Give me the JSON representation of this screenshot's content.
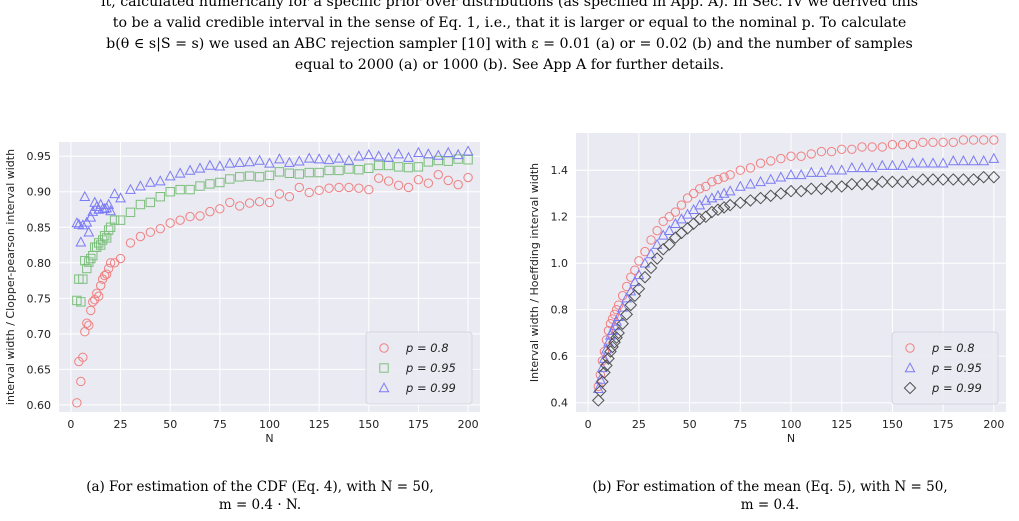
{
  "intro": {
    "line1": "it, calculated numerically for a specific prior over distributions (as specified in App. A). In Sec. IV we derived this",
    "line2": "to be a valid credible interval in the sense of Eq. 1, i.e., that it is larger or equal to the nominal p. To calculate",
    "line3": "b(θ ∈ s|S = s) we used an ABC rejection sampler [10] with ε = 0.01 (a) or = 0.02 (b) and the number of samples",
    "line4": "equal to 2000 (a) or 1000 (b). See App A for further details."
  },
  "captions": {
    "a_line1": "(a) For estimation of the CDF (Eq. 4), with N = 50,",
    "a_line2": "m = 0.4 · N.",
    "b_line1": "(b) For estimation of the mean (Eq. 5), with N = 50,",
    "b_line2": "m = 0.4."
  },
  "colors": {
    "plot_bg": "#eaeaf2",
    "grid": "#ffffff",
    "red": "#f08080",
    "green": "#7dbf7d",
    "blue": "#7b7bf5",
    "gray": "#505050"
  },
  "chart_data": [
    {
      "type": "scatter",
      "title": "",
      "xlabel": "N",
      "ylabel": "interval width / Clopper-pearson interval width",
      "xlim": [
        -6,
        206
      ],
      "ylim": [
        0.59,
        0.97
      ],
      "xticks": [
        0,
        25,
        50,
        75,
        100,
        125,
        150,
        175,
        200
      ],
      "yticks": [
        0.6,
        0.65,
        0.7,
        0.75,
        0.8,
        0.85,
        0.9,
        0.95
      ],
      "ytick_labels": [
        "0.60",
        "0.65",
        "0.70",
        "0.75",
        "0.80",
        "0.85",
        "0.90",
        "0.95"
      ],
      "grid": true,
      "legend_position": "lower-right",
      "series": [
        {
          "name": "p = 0.8",
          "marker": "circle",
          "color": "#f08080",
          "x": [
            3,
            4,
            5,
            6,
            7,
            8,
            9,
            10,
            11,
            12,
            13,
            14,
            15,
            16,
            17,
            18,
            19,
            20,
            22,
            25,
            30,
            35,
            40,
            45,
            50,
            55,
            60,
            65,
            70,
            75,
            80,
            85,
            90,
            95,
            100,
            105,
            110,
            115,
            120,
            125,
            130,
            135,
            140,
            145,
            150,
            155,
            160,
            165,
            170,
            175,
            180,
            185,
            190,
            195,
            200
          ],
          "y": [
            0.603,
            0.661,
            0.633,
            0.667,
            0.703,
            0.715,
            0.712,
            0.733,
            0.745,
            0.748,
            0.757,
            0.753,
            0.768,
            0.777,
            0.782,
            0.784,
            0.792,
            0.8,
            0.8,
            0.806,
            0.828,
            0.837,
            0.843,
            0.848,
            0.856,
            0.86,
            0.865,
            0.866,
            0.872,
            0.876,
            0.885,
            0.88,
            0.884,
            0.886,
            0.885,
            0.897,
            0.893,
            0.906,
            0.899,
            0.902,
            0.905,
            0.906,
            0.906,
            0.905,
            0.903,
            0.919,
            0.915,
            0.909,
            0.906,
            0.917,
            0.912,
            0.924,
            0.916,
            0.91,
            0.92
          ]
        },
        {
          "name": "p = 0.95",
          "marker": "square",
          "color": "#7dbf7d",
          "x": [
            3,
            4,
            5,
            6,
            7,
            8,
            9,
            10,
            11,
            12,
            13,
            14,
            15,
            16,
            17,
            18,
            19,
            20,
            22,
            25,
            30,
            35,
            40,
            45,
            50,
            55,
            60,
            65,
            70,
            75,
            80,
            85,
            90,
            95,
            100,
            105,
            110,
            115,
            120,
            125,
            130,
            135,
            140,
            145,
            150,
            155,
            160,
            165,
            170,
            175,
            180,
            185,
            190,
            195,
            200
          ],
          "y": [
            0.747,
            0.777,
            0.745,
            0.777,
            0.803,
            0.792,
            0.801,
            0.806,
            0.81,
            0.822,
            0.822,
            0.828,
            0.825,
            0.832,
            0.838,
            0.835,
            0.846,
            0.85,
            0.86,
            0.86,
            0.871,
            0.882,
            0.885,
            0.893,
            0.9,
            0.903,
            0.903,
            0.908,
            0.911,
            0.913,
            0.918,
            0.921,
            0.922,
            0.921,
            0.923,
            0.928,
            0.926,
            0.925,
            0.927,
            0.927,
            0.93,
            0.93,
            0.932,
            0.931,
            0.933,
            0.937,
            0.937,
            0.935,
            0.934,
            0.935,
            0.942,
            0.944,
            0.943,
            0.946,
            0.945
          ]
        },
        {
          "name": "p = 0.99",
          "marker": "triangle",
          "color": "#7b7bf5",
          "x": [
            3,
            4,
            5,
            6,
            7,
            8,
            9,
            10,
            11,
            12,
            13,
            14,
            15,
            16,
            17,
            18,
            19,
            20,
            22,
            25,
            30,
            35,
            40,
            45,
            50,
            55,
            60,
            65,
            70,
            75,
            80,
            85,
            90,
            95,
            100,
            105,
            110,
            115,
            120,
            125,
            130,
            135,
            140,
            145,
            150,
            155,
            160,
            165,
            170,
            175,
            180,
            185,
            190,
            195,
            200
          ],
          "y": [
            0.856,
            0.854,
            0.829,
            0.853,
            0.893,
            0.857,
            0.843,
            0.864,
            0.872,
            0.885,
            0.879,
            0.875,
            0.882,
            0.876,
            0.876,
            0.877,
            0.882,
            0.873,
            0.897,
            0.891,
            0.903,
            0.908,
            0.913,
            0.915,
            0.922,
            0.926,
            0.93,
            0.933,
            0.937,
            0.936,
            0.94,
            0.941,
            0.942,
            0.944,
            0.94,
            0.946,
            0.941,
            0.943,
            0.947,
            0.946,
            0.945,
            0.947,
            0.944,
            0.95,
            0.952,
            0.95,
            0.948,
            0.953,
            0.948,
            0.955,
            0.953,
            0.951,
            0.955,
            0.952,
            0.957
          ]
        }
      ]
    },
    {
      "type": "scatter",
      "title": "",
      "xlabel": "N",
      "ylabel": "Interval width / Hoeffding interval width",
      "xlim": [
        -6,
        206
      ],
      "ylim": [
        0.36,
        1.56
      ],
      "xticks": [
        0,
        25,
        50,
        75,
        100,
        125,
        150,
        175,
        200
      ],
      "yticks": [
        0.4,
        0.6,
        0.8,
        1.0,
        1.2,
        1.4
      ],
      "ytick_labels": [
        "0.4",
        "0.6",
        "0.8",
        "1.0",
        "1.2",
        "1.4"
      ],
      "grid": true,
      "legend_position": "lower-right",
      "series": [
        {
          "name": "p = 0.8",
          "marker": "circle",
          "color": "#f08080",
          "x": [
            5,
            6,
            7,
            8,
            9,
            10,
            11,
            12,
            13,
            14,
            15,
            17,
            19,
            21,
            23,
            25,
            28,
            31,
            34,
            37,
            40,
            43,
            46,
            49,
            52,
            55,
            58,
            61,
            64,
            67,
            70,
            75,
            80,
            85,
            90,
            95,
            100,
            105,
            110,
            115,
            120,
            125,
            130,
            135,
            140,
            145,
            150,
            155,
            160,
            165,
            170,
            175,
            180,
            185,
            190,
            195,
            200
          ],
          "y": [
            0.47,
            0.52,
            0.58,
            0.62,
            0.67,
            0.71,
            0.74,
            0.76,
            0.78,
            0.8,
            0.82,
            0.86,
            0.9,
            0.94,
            0.97,
            1.01,
            1.05,
            1.1,
            1.14,
            1.18,
            1.2,
            1.22,
            1.25,
            1.28,
            1.3,
            1.32,
            1.33,
            1.35,
            1.36,
            1.37,
            1.38,
            1.4,
            1.41,
            1.43,
            1.44,
            1.45,
            1.46,
            1.46,
            1.47,
            1.48,
            1.48,
            1.49,
            1.49,
            1.5,
            1.5,
            1.5,
            1.51,
            1.51,
            1.51,
            1.52,
            1.52,
            1.52,
            1.52,
            1.53,
            1.53,
            1.53,
            1.53
          ]
        },
        {
          "name": "p = 0.95",
          "marker": "triangle",
          "color": "#7b7bf5",
          "x": [
            5,
            6,
            7,
            8,
            9,
            10,
            11,
            12,
            13,
            14,
            15,
            17,
            19,
            21,
            23,
            25,
            28,
            31,
            34,
            37,
            40,
            43,
            46,
            49,
            52,
            55,
            58,
            61,
            64,
            67,
            70,
            75,
            80,
            85,
            90,
            95,
            100,
            105,
            110,
            115,
            120,
            125,
            130,
            135,
            140,
            145,
            150,
            155,
            160,
            165,
            170,
            175,
            180,
            185,
            190,
            195,
            200
          ],
          "y": [
            0.46,
            0.5,
            0.55,
            0.59,
            0.63,
            0.66,
            0.69,
            0.71,
            0.73,
            0.75,
            0.77,
            0.81,
            0.85,
            0.88,
            0.92,
            0.95,
            1.0,
            1.04,
            1.08,
            1.12,
            1.14,
            1.17,
            1.19,
            1.21,
            1.23,
            1.25,
            1.27,
            1.28,
            1.29,
            1.3,
            1.31,
            1.33,
            1.34,
            1.35,
            1.36,
            1.37,
            1.38,
            1.38,
            1.39,
            1.39,
            1.4,
            1.4,
            1.41,
            1.41,
            1.41,
            1.42,
            1.42,
            1.42,
            1.43,
            1.43,
            1.43,
            1.43,
            1.44,
            1.44,
            1.44,
            1.44,
            1.45
          ]
        },
        {
          "name": "p = 0.99",
          "marker": "diamond",
          "color": "#505050",
          "x": [
            5,
            6,
            7,
            8,
            9,
            10,
            11,
            12,
            13,
            14,
            15,
            17,
            19,
            21,
            23,
            25,
            28,
            31,
            34,
            37,
            40,
            43,
            46,
            49,
            52,
            55,
            58,
            61,
            64,
            67,
            70,
            75,
            80,
            85,
            90,
            95,
            100,
            105,
            110,
            115,
            120,
            125,
            130,
            135,
            140,
            145,
            150,
            155,
            160,
            165,
            170,
            175,
            180,
            185,
            190,
            195,
            200
          ],
          "y": [
            0.41,
            0.45,
            0.49,
            0.53,
            0.56,
            0.59,
            0.62,
            0.64,
            0.66,
            0.68,
            0.7,
            0.74,
            0.78,
            0.82,
            0.86,
            0.89,
            0.94,
            0.98,
            1.02,
            1.06,
            1.08,
            1.11,
            1.13,
            1.15,
            1.17,
            1.19,
            1.2,
            1.22,
            1.23,
            1.24,
            1.25,
            1.26,
            1.27,
            1.28,
            1.29,
            1.3,
            1.31,
            1.31,
            1.32,
            1.32,
            1.33,
            1.33,
            1.34,
            1.34,
            1.34,
            1.35,
            1.35,
            1.35,
            1.35,
            1.36,
            1.36,
            1.36,
            1.36,
            1.36,
            1.36,
            1.37,
            1.37
          ]
        }
      ]
    }
  ]
}
